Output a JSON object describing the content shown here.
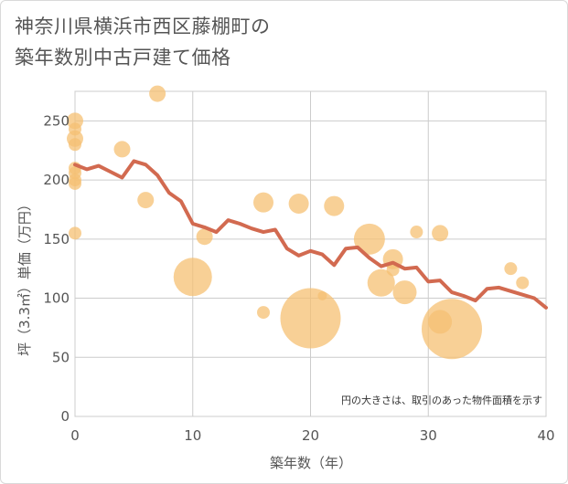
{
  "chart_data": {
    "type": "scatter",
    "title_lines": [
      "神奈川県横浜市西区藤棚町の",
      "築年数別中古戸建て価格"
    ],
    "xlabel": "築年数（年）",
    "ylabel": "坪（3.3㎡）単価（万円）",
    "xlim": [
      0,
      40
    ],
    "ylim": [
      0,
      275
    ],
    "x_ticks": [
      0,
      10,
      20,
      30,
      40
    ],
    "y_ticks": [
      0,
      50,
      100,
      150,
      200,
      250
    ],
    "grid": true,
    "note": "円の大きさは、取引のあった物件面積を示す",
    "bubble_color": "#f5c073",
    "line_color": "#d26a50",
    "bubbles": [
      {
        "x": 0,
        "y": 250,
        "size": 4
      },
      {
        "x": 0,
        "y": 243,
        "size": 3
      },
      {
        "x": 0,
        "y": 235,
        "size": 4
      },
      {
        "x": 0,
        "y": 230,
        "size": 3
      },
      {
        "x": 0,
        "y": 210,
        "size": 3
      },
      {
        "x": 0,
        "y": 206,
        "size": 3
      },
      {
        "x": 0,
        "y": 200,
        "size": 3
      },
      {
        "x": 0,
        "y": 197,
        "size": 3
      },
      {
        "x": 0,
        "y": 155,
        "size": 3
      },
      {
        "x": 4,
        "y": 226,
        "size": 4
      },
      {
        "x": 6,
        "y": 183,
        "size": 4
      },
      {
        "x": 7,
        "y": 273,
        "size": 4
      },
      {
        "x": 10,
        "y": 118,
        "size": 10
      },
      {
        "x": 11,
        "y": 152,
        "size": 4
      },
      {
        "x": 16,
        "y": 181,
        "size": 5
      },
      {
        "x": 16,
        "y": 88,
        "size": 3
      },
      {
        "x": 19,
        "y": 180,
        "size": 5
      },
      {
        "x": 20,
        "y": 83,
        "size": 16
      },
      {
        "x": 21,
        "y": 102,
        "size": 2
      },
      {
        "x": 22,
        "y": 178,
        "size": 5
      },
      {
        "x": 25,
        "y": 150,
        "size": 8
      },
      {
        "x": 26,
        "y": 113,
        "size": 7
      },
      {
        "x": 27,
        "y": 133,
        "size": 5
      },
      {
        "x": 27,
        "y": 124,
        "size": 3
      },
      {
        "x": 28,
        "y": 105,
        "size": 6
      },
      {
        "x": 29,
        "y": 156,
        "size": 3
      },
      {
        "x": 31,
        "y": 155,
        "size": 4
      },
      {
        "x": 31,
        "y": 80,
        "size": 6
      },
      {
        "x": 32,
        "y": 74,
        "size": 16
      },
      {
        "x": 37,
        "y": 125,
        "size": 3
      },
      {
        "x": 38,
        "y": 113,
        "size": 3
      }
    ],
    "line": {
      "x": [
        0,
        1,
        2,
        3,
        4,
        5,
        6,
        7,
        8,
        9,
        10,
        11,
        12,
        13,
        14,
        15,
        16,
        17,
        18,
        19,
        20,
        21,
        22,
        23,
        24,
        25,
        26,
        27,
        28,
        29,
        30,
        31,
        32,
        33,
        34,
        35,
        36,
        37,
        38,
        39,
        40
      ],
      "y": [
        213,
        209,
        212,
        207,
        202,
        216,
        213,
        204,
        189,
        182,
        163,
        160,
        156,
        166,
        163,
        159,
        156,
        158,
        142,
        136,
        140,
        137,
        128,
        142,
        143,
        134,
        127,
        130,
        125,
        126,
        114,
        115,
        105,
        102,
        98,
        108,
        109,
        106,
        103,
        100,
        92
      ]
    }
  }
}
